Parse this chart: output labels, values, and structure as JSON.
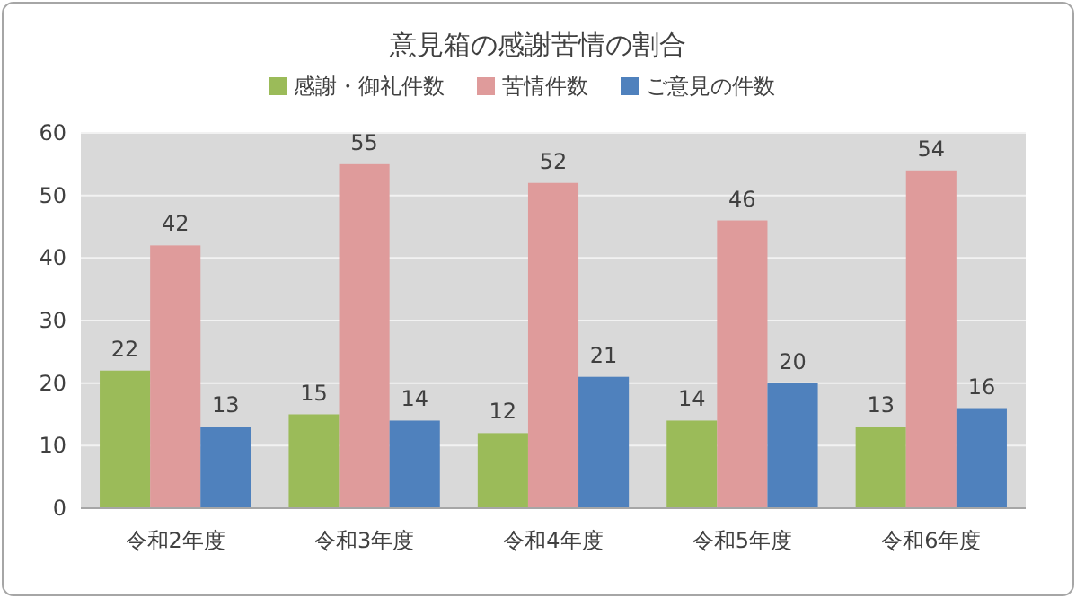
{
  "chart_data": {
    "type": "bar",
    "title": "意見箱の感謝苦情の割合",
    "categories": [
      "令和2年度",
      "令和3年度",
      "令和4年度",
      "令和5年度",
      "令和6年度"
    ],
    "series": [
      {
        "name": "感謝・御礼件数",
        "color": "#9bbb59",
        "values": [
          22,
          15,
          12,
          14,
          13
        ]
      },
      {
        "name": "苦情件数",
        "color": "#df9b9b",
        "values": [
          42,
          55,
          52,
          46,
          54
        ]
      },
      {
        "name": "ご意見の件数",
        "color": "#4f81bd",
        "values": [
          13,
          14,
          21,
          20,
          16
        ]
      }
    ],
    "ylim": [
      0,
      60
    ],
    "yticks": [
      0,
      10,
      20,
      30,
      40,
      50,
      60
    ],
    "grid": "y",
    "legend": "top",
    "data_labels": true
  }
}
